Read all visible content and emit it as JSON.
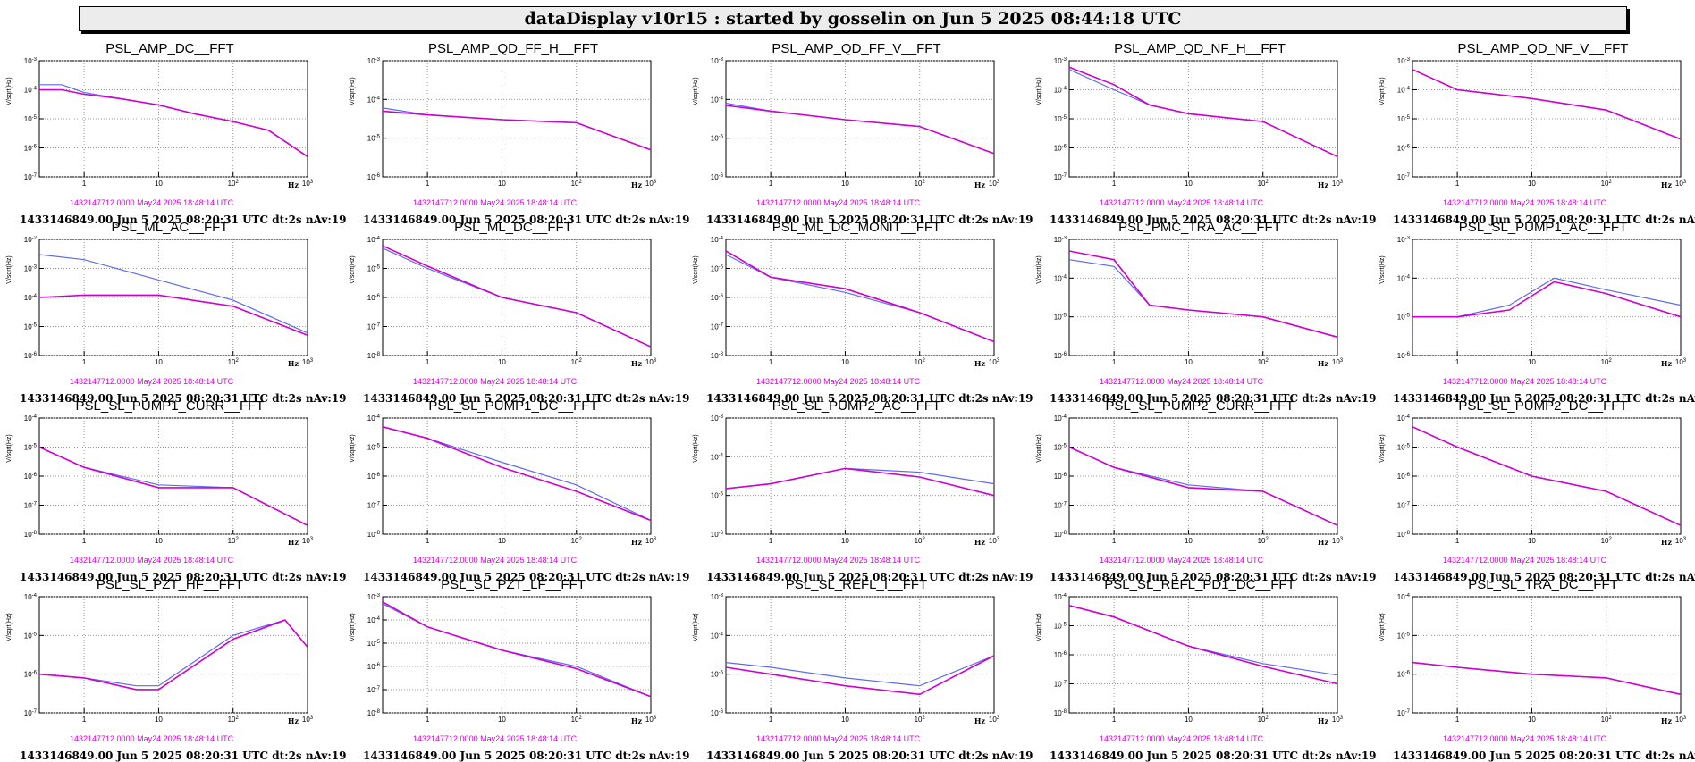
{
  "header": {
    "title": "dataDisplay v10r15 : started by gosselin on Jun  5 2025 08:44:18 UTC"
  },
  "common": {
    "ylabel": "V/sqrt(Hz)",
    "xunit": "Hz",
    "reference_time": "1432147712.0000 May24 2025 18:48:14 UTC",
    "timestamp": "1433146849.00 Jun 5 2025 08:20:31 UTC dt:2s nAv:19"
  },
  "colors": {
    "reference": "#5b6cf0",
    "current": "#d000d0",
    "ref_text": "#e000e0"
  },
  "chart_data": [
    {
      "type": "line",
      "title": "PSL_AMP_DC__FFT",
      "xscale": "log",
      "yscale": "log",
      "xlim": [
        0.25,
        1000
      ],
      "ylim": [
        1e-07,
        0.001
      ],
      "grid": true,
      "series": [
        {
          "name": "1432147712.0000 May24 2025 18:48:14 UTC",
          "x": [
            0.25,
            0.5,
            1,
            3,
            10,
            30,
            100,
            300,
            1000
          ],
          "y": [
            0.00015,
            0.00015,
            8e-05,
            5e-05,
            3e-05,
            1.5e-05,
            8e-06,
            4e-06,
            5e-07
          ]
        },
        {
          "name": "1433146849.00 Jun 5 2025 08:20:31 UTC dt:2s nAv:19",
          "x": [
            0.25,
            0.5,
            1,
            3,
            10,
            30,
            100,
            300,
            1000
          ],
          "y": [
            0.0001,
            0.0001,
            7e-05,
            5e-05,
            3e-05,
            1.5e-05,
            8e-06,
            4e-06,
            5e-07
          ]
        }
      ]
    },
    {
      "type": "line",
      "title": "PSL_AMP_QD_FF_H__FFT",
      "xscale": "log",
      "yscale": "log",
      "xlim": [
        0.25,
        1000
      ],
      "ylim": [
        1e-06,
        0.001
      ],
      "grid": true,
      "series": [
        {
          "name": "1432147712.0000 May24 2025 18:48:14 UTC",
          "x": [
            0.25,
            1,
            10,
            100,
            1000
          ],
          "y": [
            6e-05,
            4e-05,
            3e-05,
            2.5e-05,
            5e-06
          ]
        },
        {
          "name": "1433146849.00 Jun 5 2025 08:20:31 UTC dt:2s nAv:19",
          "x": [
            0.25,
            1,
            10,
            100,
            1000
          ],
          "y": [
            5e-05,
            4e-05,
            3e-05,
            2.5e-05,
            5e-06
          ]
        }
      ]
    },
    {
      "type": "line",
      "title": "PSL_AMP_QD_FF_V__FFT",
      "xscale": "log",
      "yscale": "log",
      "xlim": [
        0.25,
        1000
      ],
      "ylim": [
        1e-06,
        0.001
      ],
      "grid": true,
      "series": [
        {
          "name": "1432147712.0000 May24 2025 18:48:14 UTC",
          "x": [
            0.25,
            1,
            10,
            100,
            1000
          ],
          "y": [
            8e-05,
            5e-05,
            3e-05,
            2e-05,
            4e-06
          ]
        },
        {
          "name": "1433146849.00 Jun 5 2025 08:20:31 UTC dt:2s nAv:19",
          "x": [
            0.25,
            1,
            10,
            100,
            1000
          ],
          "y": [
            7e-05,
            5e-05,
            3e-05,
            2e-05,
            4e-06
          ]
        }
      ]
    },
    {
      "type": "line",
      "title": "PSL_AMP_QD_NF_H__FFT",
      "xscale": "log",
      "yscale": "log",
      "xlim": [
        0.25,
        1000
      ],
      "ylim": [
        1e-07,
        0.001
      ],
      "grid": true,
      "series": [
        {
          "name": "1432147712.0000 May24 2025 18:48:14 UTC",
          "x": [
            0.25,
            1,
            3,
            10,
            100,
            1000
          ],
          "y": [
            0.0005,
            0.0001,
            3e-05,
            1.5e-05,
            8e-06,
            5e-07
          ]
        },
        {
          "name": "1433146849.00 Jun 5 2025 08:20:31 UTC dt:2s nAv:19",
          "x": [
            0.25,
            1,
            3,
            10,
            100,
            1000
          ],
          "y": [
            0.0006,
            0.00015,
            3e-05,
            1.5e-05,
            8e-06,
            5e-07
          ]
        }
      ]
    },
    {
      "type": "line",
      "title": "PSL_AMP_QD_NF_V__FFT",
      "xscale": "log",
      "yscale": "log",
      "xlim": [
        0.25,
        1000
      ],
      "ylim": [
        1e-07,
        0.001
      ],
      "grid": true,
      "series": [
        {
          "name": "1432147712.0000 May24 2025 18:48:14 UTC",
          "x": [
            0.25,
            1,
            10,
            100,
            1000
          ],
          "y": [
            0.0005,
            0.0001,
            5e-05,
            2e-05,
            2e-06
          ]
        },
        {
          "name": "1433146849.00 Jun 5 2025 08:20:31 UTC dt:2s nAv:19",
          "x": [
            0.25,
            1,
            10,
            100,
            1000
          ],
          "y": [
            0.0005,
            0.0001,
            5e-05,
            2e-05,
            2e-06
          ]
        }
      ]
    },
    {
      "type": "line",
      "title": "PSL_ML_AC__FFT",
      "xscale": "log",
      "yscale": "log",
      "xlim": [
        0.25,
        1000
      ],
      "ylim": [
        1e-06,
        0.01
      ],
      "grid": true,
      "series": [
        {
          "name": "1432147712.0000 May24 2025 18:48:14 UTC",
          "x": [
            0.25,
            1,
            10,
            100,
            1000
          ],
          "y": [
            0.003,
            0.002,
            0.0004,
            8e-05,
            6e-06
          ]
        },
        {
          "name": "1433146849.00 Jun 5 2025 08:20:31 UTC dt:2s nAv:19",
          "x": [
            0.25,
            1,
            10,
            100,
            1000
          ],
          "y": [
            0.0001,
            0.00012,
            0.00012,
            5e-05,
            5e-06
          ]
        }
      ]
    },
    {
      "type": "line",
      "title": "PSL_ML_DC__FFT",
      "xscale": "log",
      "yscale": "log",
      "xlim": [
        0.25,
        1000
      ],
      "ylim": [
        1e-08,
        0.0001
      ],
      "grid": true,
      "series": [
        {
          "name": "1432147712.0000 May24 2025 18:48:14 UTC",
          "x": [
            0.25,
            1,
            10,
            100,
            1000
          ],
          "y": [
            5e-05,
            1e-05,
            1e-06,
            3e-07,
            2e-08
          ]
        },
        {
          "name": "1433146849.00 Jun 5 2025 08:20:31 UTC dt:2s nAv:19",
          "x": [
            0.25,
            1,
            10,
            100,
            1000
          ],
          "y": [
            6e-05,
            1.2e-05,
            1e-06,
            3e-07,
            2e-08
          ]
        }
      ]
    },
    {
      "type": "line",
      "title": "PSL_ML_DC_MONIT__FFT",
      "xscale": "log",
      "yscale": "log",
      "xlim": [
        0.25,
        1000
      ],
      "ylim": [
        1e-08,
        0.0001
      ],
      "grid": true,
      "series": [
        {
          "name": "1432147712.0000 May24 2025 18:48:14 UTC",
          "x": [
            0.25,
            1,
            10,
            100,
            1000
          ],
          "y": [
            3e-05,
            5e-06,
            1.5e-06,
            3e-07,
            3e-08
          ]
        },
        {
          "name": "1433146849.00 Jun 5 2025 08:20:31 UTC dt:2s nAv:19",
          "x": [
            0.25,
            1,
            10,
            100,
            1000
          ],
          "y": [
            4e-05,
            5e-06,
            2e-06,
            3e-07,
            3e-08
          ]
        }
      ]
    },
    {
      "type": "line",
      "title": "PSL_PMC_TRA_AC__FFT",
      "xscale": "log",
      "yscale": "log",
      "xlim": [
        0.25,
        1000
      ],
      "ylim": [
        1e-06,
        0.001
      ],
      "grid": true,
      "series": [
        {
          "name": "1432147712.0000 May24 2025 18:48:14 UTC",
          "x": [
            0.25,
            1,
            3,
            10,
            100,
            1000
          ],
          "y": [
            0.0003,
            0.0002,
            2e-05,
            1.5e-05,
            1e-05,
            3e-06
          ]
        },
        {
          "name": "1433146849.00 Jun 5 2025 08:20:31 UTC dt:2s nAv:19",
          "x": [
            0.25,
            1,
            3,
            10,
            100,
            1000
          ],
          "y": [
            0.0005,
            0.0003,
            2e-05,
            1.5e-05,
            1e-05,
            3e-06
          ]
        }
      ]
    },
    {
      "type": "line",
      "title": "PSL_SL_PUMP1_AC__FFT",
      "xscale": "log",
      "yscale": "log",
      "xlim": [
        0.25,
        1000
      ],
      "ylim": [
        1e-06,
        0.001
      ],
      "grid": true,
      "series": [
        {
          "name": "1432147712.0000 May24 2025 18:48:14 UTC",
          "x": [
            0.25,
            1,
            5,
            20,
            100,
            1000
          ],
          "y": [
            1e-05,
            1e-05,
            2e-05,
            0.0001,
            5e-05,
            2e-05
          ]
        },
        {
          "name": "1433146849.00 Jun 5 2025 08:20:31 UTC dt:2s nAv:19",
          "x": [
            0.25,
            1,
            5,
            20,
            100,
            1000
          ],
          "y": [
            1e-05,
            1e-05,
            1.5e-05,
            8e-05,
            4e-05,
            1e-05
          ]
        }
      ]
    },
    {
      "type": "line",
      "title": "PSL_SL_PUMP1_CURR__FFT",
      "xscale": "log",
      "yscale": "log",
      "xlim": [
        0.25,
        1000
      ],
      "ylim": [
        1e-08,
        0.0001
      ],
      "grid": true,
      "series": [
        {
          "name": "1432147712.0000 May24 2025 18:48:14 UTC",
          "x": [
            0.25,
            1,
            10,
            100,
            1000
          ],
          "y": [
            1e-05,
            2e-06,
            5e-07,
            4e-07,
            2e-08
          ]
        },
        {
          "name": "1433146849.00 Jun 5 2025 08:20:31 UTC dt:2s nAv:19",
          "x": [
            0.25,
            1,
            10,
            100,
            1000
          ],
          "y": [
            1e-05,
            2e-06,
            4e-07,
            4e-07,
            2e-08
          ]
        }
      ]
    },
    {
      "type": "line",
      "title": "PSL_SL_PUMP1_DC__FFT",
      "xscale": "log",
      "yscale": "log",
      "xlim": [
        0.25,
        1000
      ],
      "ylim": [
        1e-08,
        0.0001
      ],
      "grid": true,
      "series": [
        {
          "name": "1432147712.0000 May24 2025 18:48:14 UTC",
          "x": [
            0.25,
            1,
            10,
            100,
            1000
          ],
          "y": [
            5e-05,
            2e-05,
            3e-06,
            5e-07,
            3e-08
          ]
        },
        {
          "name": "1433146849.00 Jun 5 2025 08:20:31 UTC dt:2s nAv:19",
          "x": [
            0.25,
            1,
            10,
            100,
            1000
          ],
          "y": [
            5e-05,
            2e-05,
            2e-06,
            3e-07,
            3e-08
          ]
        }
      ]
    },
    {
      "type": "line",
      "title": "PSL_SL_PUMP2_AC__FFT",
      "xscale": "log",
      "yscale": "log",
      "xlim": [
        0.25,
        1000
      ],
      "ylim": [
        1e-06,
        0.001
      ],
      "grid": true,
      "series": [
        {
          "name": "1432147712.0000 May24 2025 18:48:14 UTC",
          "x": [
            0.25,
            1,
            10,
            100,
            1000
          ],
          "y": [
            1.5e-05,
            2e-05,
            5e-05,
            4e-05,
            2e-05
          ]
        },
        {
          "name": "1433146849.00 Jun 5 2025 08:20:31 UTC dt:2s nAv:19",
          "x": [
            0.25,
            1,
            10,
            100,
            1000
          ],
          "y": [
            1.5e-05,
            2e-05,
            5e-05,
            3e-05,
            1e-05
          ]
        }
      ]
    },
    {
      "type": "line",
      "title": "PSL_SL_PUMP2_CURR__FFT",
      "xscale": "log",
      "yscale": "log",
      "xlim": [
        0.25,
        1000
      ],
      "ylim": [
        1e-08,
        0.0001
      ],
      "grid": true,
      "series": [
        {
          "name": "1432147712.0000 May24 2025 18:48:14 UTC",
          "x": [
            0.25,
            1,
            10,
            100,
            1000
          ],
          "y": [
            1e-05,
            2e-06,
            5e-07,
            3e-07,
            2e-08
          ]
        },
        {
          "name": "1433146849.00 Jun 5 2025 08:20:31 UTC dt:2s nAv:19",
          "x": [
            0.25,
            1,
            10,
            100,
            1000
          ],
          "y": [
            1e-05,
            2e-06,
            4e-07,
            3e-07,
            2e-08
          ]
        }
      ]
    },
    {
      "type": "line",
      "title": "PSL_SL_PUMP2_DC__FFT",
      "xscale": "log",
      "yscale": "log",
      "xlim": [
        0.25,
        1000
      ],
      "ylim": [
        1e-08,
        0.0001
      ],
      "grid": true,
      "series": [
        {
          "name": "1432147712.0000 May24 2025 18:48:14 UTC",
          "x": [
            0.25,
            1,
            10,
            100,
            1000
          ],
          "y": [
            5e-05,
            1e-05,
            1e-06,
            3e-07,
            2e-08
          ]
        },
        {
          "name": "1433146849.00 Jun 5 2025 08:20:31 UTC dt:2s nAv:19",
          "x": [
            0.25,
            1,
            10,
            100,
            1000
          ],
          "y": [
            5e-05,
            1e-05,
            1e-06,
            3e-07,
            2e-08
          ]
        }
      ]
    },
    {
      "type": "line",
      "title": "PSL_SL_PZT_HF__FFT",
      "xscale": "log",
      "yscale": "log",
      "xlim": [
        0.25,
        1000
      ],
      "ylim": [
        1e-07,
        0.0001
      ],
      "grid": true,
      "series": [
        {
          "name": "1432147712.0000 May24 2025 18:48:14 UTC",
          "x": [
            0.25,
            1,
            5,
            10,
            100,
            500,
            1000
          ],
          "y": [
            1e-06,
            8e-07,
            5e-07,
            5e-07,
            1e-05,
            2.5e-05,
            5e-06
          ]
        },
        {
          "name": "1433146849.00 Jun 5 2025 08:20:31 UTC dt:2s nAv:19",
          "x": [
            0.25,
            1,
            5,
            10,
            100,
            500,
            1000
          ],
          "y": [
            1e-06,
            8e-07,
            4e-07,
            4e-07,
            8e-06,
            2.5e-05,
            5e-06
          ]
        }
      ]
    },
    {
      "type": "line",
      "title": "PSL_SL_PZT_LF__FFT",
      "xscale": "log",
      "yscale": "log",
      "xlim": [
        0.25,
        1000
      ],
      "ylim": [
        1e-08,
        0.001
      ],
      "grid": true,
      "series": [
        {
          "name": "1432147712.0000 May24 2025 18:48:14 UTC",
          "x": [
            0.25,
            1,
            10,
            100,
            1000
          ],
          "y": [
            0.0005,
            5e-05,
            5e-06,
            1e-06,
            5e-08
          ]
        },
        {
          "name": "1433146849.00 Jun 5 2025 08:20:31 UTC dt:2s nAv:19",
          "x": [
            0.25,
            1,
            10,
            100,
            1000
          ],
          "y": [
            0.0006,
            5e-05,
            5e-06,
            8e-07,
            5e-08
          ]
        }
      ]
    },
    {
      "type": "line",
      "title": "PSL_SL_REFL_I__FFT",
      "xscale": "log",
      "yscale": "log",
      "xlim": [
        0.25,
        1000
      ],
      "ylim": [
        1e-06,
        0.001
      ],
      "grid": true,
      "series": [
        {
          "name": "1432147712.0000 May24 2025 18:48:14 UTC",
          "x": [
            0.25,
            1,
            10,
            100,
            1000
          ],
          "y": [
            2e-05,
            1.5e-05,
            8e-06,
            5e-06,
            3e-05
          ]
        },
        {
          "name": "1433146849.00 Jun 5 2025 08:20:31 UTC dt:2s nAv:19",
          "x": [
            0.25,
            1,
            10,
            100,
            1000
          ],
          "y": [
            1.5e-05,
            1e-05,
            5e-06,
            3e-06,
            3e-05
          ]
        }
      ]
    },
    {
      "type": "line",
      "title": "PSL_SL_REFL_PD1_DC__FFT",
      "xscale": "log",
      "yscale": "log",
      "xlim": [
        0.25,
        1000
      ],
      "ylim": [
        1e-08,
        0.0001
      ],
      "grid": true,
      "series": [
        {
          "name": "1432147712.0000 May24 2025 18:48:14 UTC",
          "x": [
            0.25,
            1,
            10,
            100,
            1000
          ],
          "y": [
            5e-05,
            2e-05,
            2e-06,
            5e-07,
            2e-07
          ]
        },
        {
          "name": "1433146849.00 Jun 5 2025 08:20:31 UTC dt:2s nAv:19",
          "x": [
            0.25,
            1,
            10,
            100,
            1000
          ],
          "y": [
            5e-05,
            2e-05,
            2e-06,
            4e-07,
            1e-07
          ]
        }
      ]
    },
    {
      "type": "line",
      "title": "PSL_SL_TRA_DC__FFT",
      "xscale": "log",
      "yscale": "log",
      "xlim": [
        0.25,
        1000
      ],
      "ylim": [
        1e-07,
        0.0001
      ],
      "grid": true,
      "series": [
        {
          "name": "1432147712.0000 May24 2025 18:48:14 UTC",
          "x": [
            0.25,
            1,
            10,
            100,
            1000
          ],
          "y": [
            2e-06,
            1.5e-06,
            1e-06,
            8e-07,
            3e-07
          ]
        },
        {
          "name": "1433146849.00 Jun 5 2025 08:20:31 UTC dt:2s nAv:19",
          "x": [
            0.25,
            1,
            10,
            100,
            1000
          ],
          "y": [
            2e-06,
            1.5e-06,
            1e-06,
            8e-07,
            3e-07
          ]
        }
      ]
    }
  ]
}
